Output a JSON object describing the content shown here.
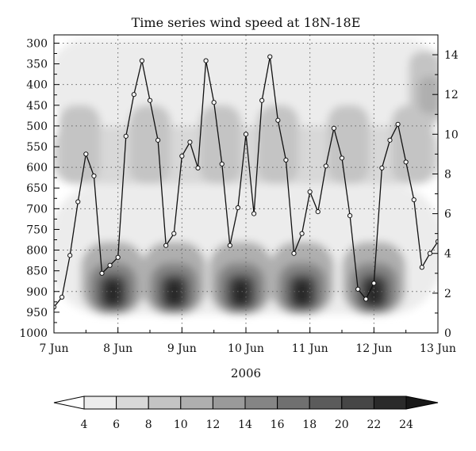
{
  "chart_data": {
    "type": "heatmap",
    "title": "Time series wind speed at 18N-18E",
    "xlabel": "2006",
    "x_ticks": [
      "7 Jun",
      "8 Jun",
      "9 Jun",
      "10 Jun",
      "11 Jun",
      "12 Jun",
      "13 Jun"
    ],
    "x_range_days": [
      0,
      6
    ],
    "y_left": {
      "ticks": [
        300,
        350,
        400,
        450,
        500,
        550,
        600,
        650,
        700,
        750,
        800,
        850,
        900,
        950,
        1000
      ],
      "range": [
        1000,
        280
      ],
      "inverted": true
    },
    "y_right": {
      "ticks": [
        0,
        2,
        4,
        6,
        8,
        10,
        12,
        14
      ],
      "range": [
        0,
        15
      ]
    },
    "colorbar": {
      "levels": [
        4,
        6,
        8,
        10,
        12,
        14,
        16,
        18,
        20,
        22,
        24
      ],
      "colors": [
        "#ffffff",
        "#ececec",
        "#d8d8d8",
        "#c4c4c4",
        "#afafaf",
        "#9a9a9a",
        "#858585",
        "#707070",
        "#5b5b5b",
        "#464646",
        "#2a2a2a",
        "#181818"
      ],
      "extend": "both"
    },
    "grid": true,
    "line_series": {
      "x": [
        0,
        0.125,
        0.25,
        0.375,
        0.5,
        0.625,
        0.75,
        0.875,
        1.0,
        1.125,
        1.25,
        1.375,
        1.5,
        1.625,
        1.75,
        1.875,
        2.0,
        2.125,
        2.25,
        2.375,
        2.5,
        2.625,
        2.75,
        2.875,
        3.0,
        3.125,
        3.25,
        3.375,
        3.5,
        3.625,
        3.75,
        3.875,
        4.0,
        4.125,
        4.25,
        4.375,
        4.5,
        4.625,
        4.75,
        4.875,
        5.0,
        5.125,
        5.25,
        5.375,
        5.5,
        5.625,
        5.75,
        5.875,
        6.0
      ],
      "y": [
        1.3,
        1.8,
        3.9,
        6.6,
        9.0,
        7.9,
        3.0,
        3.4,
        3.8,
        9.9,
        12.0,
        13.7,
        11.7,
        9.7,
        4.4,
        5.0,
        8.9,
        9.6,
        8.3,
        13.7,
        11.6,
        8.5,
        4.4,
        6.3,
        10.0,
        6.0,
        11.7,
        13.9,
        10.7,
        8.7,
        4.0,
        5.0,
        7.1,
        6.1,
        8.4,
        10.3,
        8.8,
        5.9,
        2.2,
        1.7,
        2.5,
        8.3,
        9.7,
        10.5,
        8.6,
        6.7,
        3.3,
        4.0,
        4.6
      ]
    }
  }
}
